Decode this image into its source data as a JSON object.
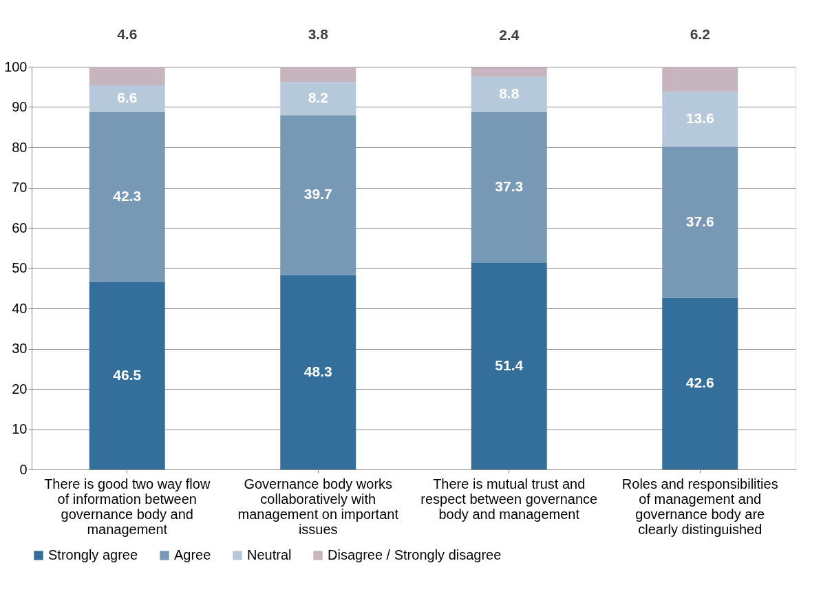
{
  "chart_data": {
    "type": "bar",
    "stacked": true,
    "data_labels": true,
    "grid": "y",
    "legend": "bottom",
    "categories": [
      "There is good two way flow of information between governance body and management",
      "Governance body works collaboratively with management on important issues",
      "There is mutual trust and respect between governance body and management",
      "Roles and responsibilities of management and governance body are clearly distinguished"
    ],
    "series": [
      {
        "name": "Strongly agree",
        "color": "#346f9b",
        "values": [
          46.5,
          48.3,
          51.4,
          42.6
        ]
      },
      {
        "name": "Agree",
        "color": "#7899b6",
        "values": [
          42.3,
          39.7,
          37.3,
          37.6
        ]
      },
      {
        "name": "Neutral",
        "color": "#b6c9da",
        "values": [
          6.6,
          8.2,
          8.8,
          13.6
        ]
      },
      {
        "name": "Disagree / Strongly disagree",
        "color": "#c6b4be",
        "values": [
          4.6,
          3.8,
          2.4,
          6.2
        ]
      }
    ],
    "ylim": [
      0,
      100
    ],
    "yticks": [
      0,
      10,
      20,
      30,
      40,
      50,
      60,
      70,
      80,
      90,
      100
    ]
  }
}
